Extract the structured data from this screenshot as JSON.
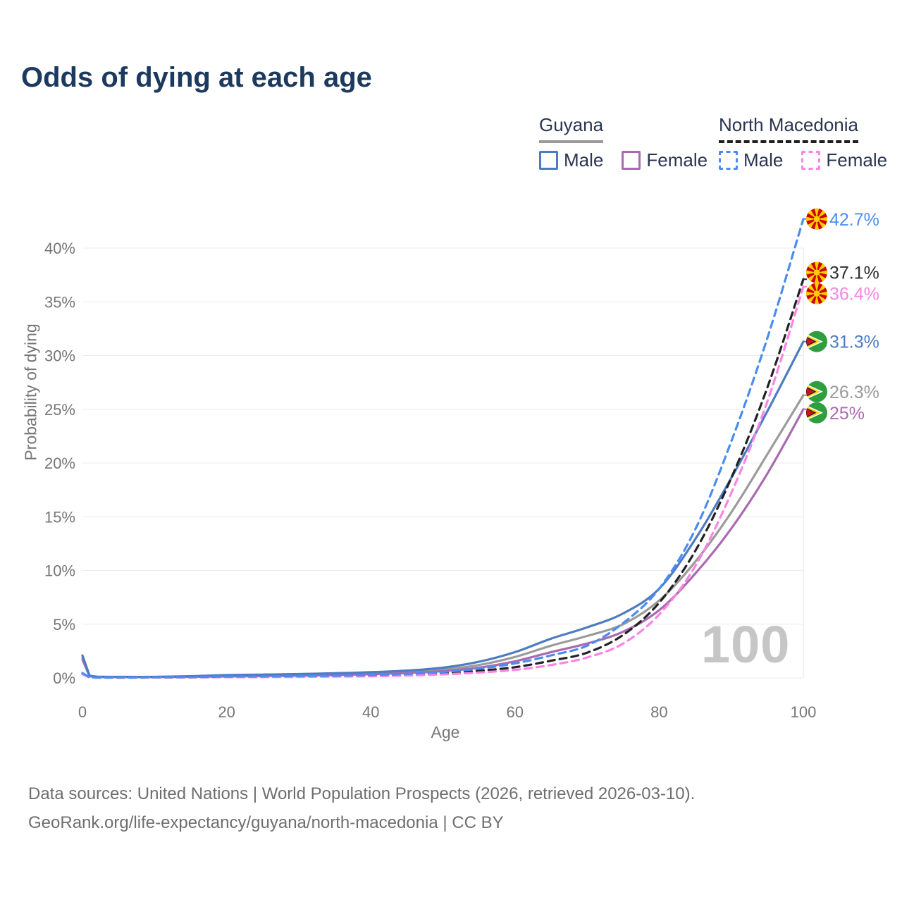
{
  "title": "Odds of dying at each age",
  "watermark_age": "100",
  "legend": {
    "groups": [
      {
        "country": "Guyana",
        "line": {
          "color": "#9b9b9b",
          "dashed": false
        },
        "items": [
          {
            "label": "Male",
            "color": "#4d7cc3",
            "dashed": false
          },
          {
            "label": "Female",
            "color": "#a86bb0",
            "dashed": false
          }
        ]
      },
      {
        "country": "North Macedonia",
        "line": {
          "color": "#1f1f1f",
          "dashed": true
        },
        "items": [
          {
            "label": "Male",
            "color": "#4a8cf2",
            "dashed": true
          },
          {
            "label": "Female",
            "color": "#f984e4",
            "dashed": true
          }
        ]
      }
    ]
  },
  "footer": {
    "line1": "Data sources: United Nations | World Population Prospects (2026, retrieved 2026-03-10).",
    "line2": "GeoRank.org/life-expectancy/guyana/north-macedonia | CC BY"
  },
  "chart_data": {
    "type": "line",
    "title": "Odds of dying at each age",
    "xlabel": "Age",
    "ylabel": "Probability of dying",
    "xlim": [
      0,
      100
    ],
    "ylim": [
      0,
      40
    ],
    "grid": "horizontal",
    "legend_position": "top-right",
    "hovered_age": 100,
    "xticks": [
      {
        "value": 0,
        "label": "0"
      },
      {
        "value": 20,
        "label": "20"
      },
      {
        "value": 40,
        "label": "40"
      },
      {
        "value": 60,
        "label": "60"
      },
      {
        "value": 80,
        "label": "80"
      },
      {
        "value": 100,
        "label": "100"
      }
    ],
    "yticks": [
      {
        "value": 0,
        "label": "0%"
      },
      {
        "value": 5,
        "label": "5%"
      },
      {
        "value": 10,
        "label": "10%"
      },
      {
        "value": 15,
        "label": "15%"
      },
      {
        "value": 20,
        "label": "20%"
      },
      {
        "value": 25,
        "label": "25%"
      },
      {
        "value": 30,
        "label": "30%"
      },
      {
        "value": 35,
        "label": "35%"
      },
      {
        "value": 40,
        "label": "40%"
      }
    ],
    "ages": [
      0,
      1,
      2,
      5,
      10,
      15,
      20,
      25,
      30,
      35,
      40,
      45,
      50,
      55,
      60,
      65,
      70,
      75,
      80,
      85,
      90,
      95,
      100
    ],
    "series": [
      {
        "name": "Guyana",
        "country": "Guyana",
        "sex": "Both",
        "color": "#9b9b9b",
        "dashed": false,
        "flag": "guyana",
        "end_label": "26.3%",
        "label_color": "#9b9b9b",
        "values": [
          1.9,
          0.17,
          0.1,
          0.09,
          0.09,
          0.13,
          0.2,
          0.24,
          0.28,
          0.34,
          0.43,
          0.56,
          0.78,
          1.2,
          1.95,
          3.0,
          3.9,
          5.0,
          7.2,
          10.8,
          15.4,
          20.8,
          26.3
        ]
      },
      {
        "name": "Guyana Female",
        "country": "Guyana",
        "sex": "Female",
        "color": "#a86bb0",
        "dashed": false,
        "flag": "guyana",
        "end_label": "25%",
        "label_color": "#a86bb0",
        "values": [
          1.7,
          0.15,
          0.09,
          0.08,
          0.08,
          0.1,
          0.14,
          0.17,
          0.2,
          0.26,
          0.34,
          0.46,
          0.63,
          0.95,
          1.55,
          2.4,
          3.2,
          4.3,
          6.3,
          9.7,
          13.9,
          19.0,
          25.0
        ]
      },
      {
        "name": "Guyana Male",
        "country": "Guyana",
        "sex": "Male",
        "color": "#4d7cc3",
        "dashed": false,
        "flag": "guyana",
        "end_label": "31.3%",
        "label_color": "#4d7cc3",
        "values": [
          2.1,
          0.2,
          0.12,
          0.1,
          0.1,
          0.16,
          0.26,
          0.31,
          0.36,
          0.43,
          0.53,
          0.68,
          0.95,
          1.5,
          2.4,
          3.65,
          4.7,
          6.0,
          8.3,
          12.9,
          18.6,
          24.8,
          31.3
        ]
      },
      {
        "name": "North Macedonia",
        "country": "North Macedonia",
        "sex": "Both",
        "color": "#222222",
        "dashed": true,
        "flag": "north-macedonia",
        "end_label": "37.1%",
        "label_color": "#2e2e2e",
        "values": [
          0.4,
          0.04,
          0.03,
          0.03,
          0.04,
          0.06,
          0.09,
          0.11,
          0.13,
          0.16,
          0.21,
          0.29,
          0.43,
          0.66,
          1.0,
          1.6,
          2.35,
          4.0,
          7.0,
          11.8,
          18.6,
          27.0,
          37.1
        ]
      },
      {
        "name": "North Macedonia Female",
        "country": "North Macedonia",
        "sex": "Female",
        "color": "#f984e4",
        "dashed": true,
        "flag": "north-macedonia",
        "end_label": "36.4%",
        "label_color": "#f984e4",
        "values": [
          0.35,
          0.04,
          0.03,
          0.03,
          0.04,
          0.05,
          0.07,
          0.08,
          0.1,
          0.13,
          0.16,
          0.22,
          0.33,
          0.5,
          0.75,
          1.2,
          1.9,
          3.2,
          5.9,
          10.4,
          17.2,
          25.7,
          36.4
        ]
      },
      {
        "name": "North Macedonia Male",
        "country": "North Macedonia",
        "sex": "Male",
        "color": "#4a8cf2",
        "dashed": true,
        "flag": "north-macedonia",
        "end_label": "42.7%",
        "label_color": "#4a8cf2",
        "values": [
          0.45,
          0.05,
          0.04,
          0.04,
          0.05,
          0.08,
          0.12,
          0.14,
          0.17,
          0.21,
          0.27,
          0.37,
          0.56,
          0.86,
          1.35,
          2.1,
          3.0,
          5.1,
          8.3,
          13.8,
          22.0,
          31.6,
          42.7
        ]
      }
    ],
    "flag_colors": {
      "north_macedonia": {
        "red": "#d20000",
        "yellow": "#ffce00"
      },
      "guyana": {
        "green": "#2e9e3f",
        "yellow": "#fcd116",
        "red": "#ce1126",
        "white": "#ffffff",
        "black": "#1a1a1a"
      }
    }
  }
}
